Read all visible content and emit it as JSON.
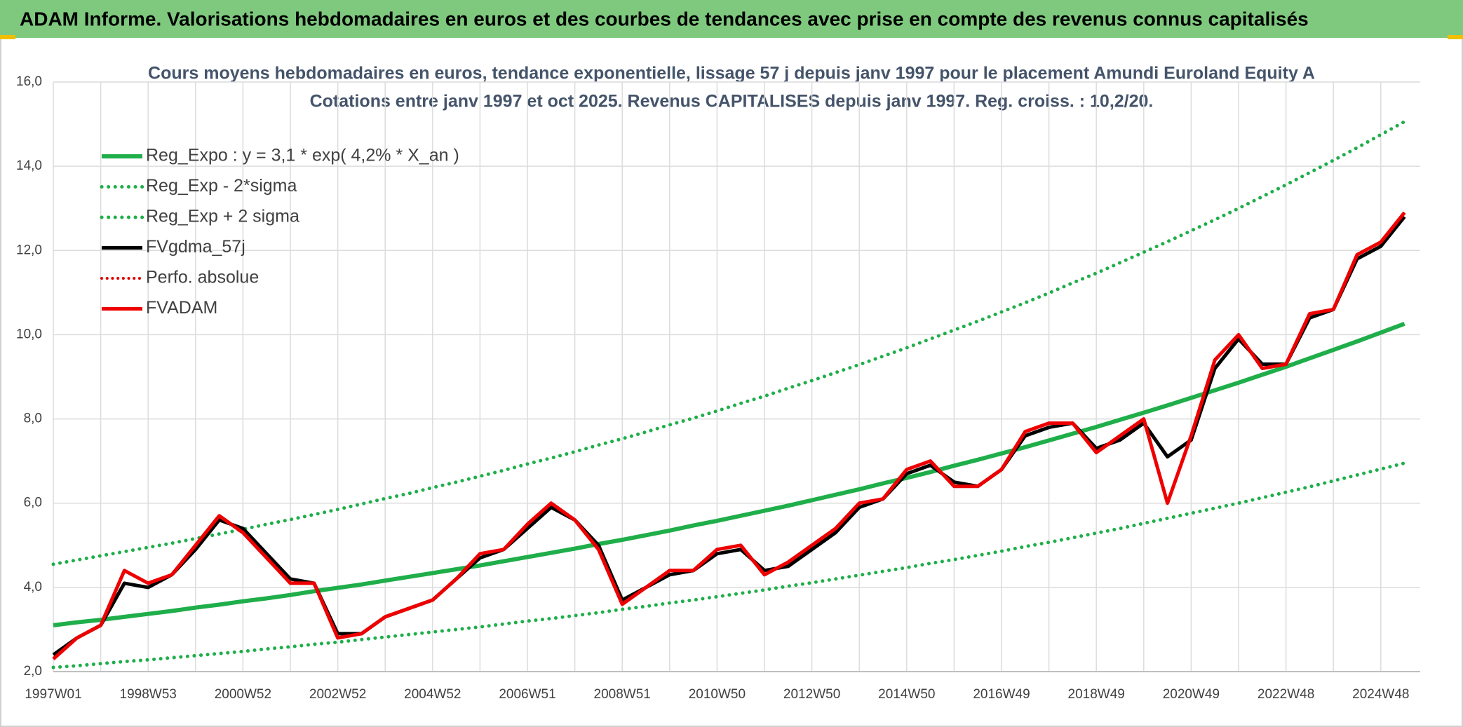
{
  "header": {
    "title": "ADAM Informe. Valorisations hebdomadaires en euros et des courbes de tendances avec prise en compte des revenus connus capitalisés"
  },
  "chart_data": {
    "type": "line",
    "title": "Cours moyens hebdomadaires en euros, tendance exponentielle, lissage 57 j depuis janv 1997 pour le placement Amundi Euroland Equity A",
    "subtitle": "Cotations entre janv 1997 et oct 2025. Revenus CAPITALISES depuis janv 1997. Reg. croiss. : 10,2/20.",
    "categories": [
      "1997W01",
      null,
      null,
      null,
      "1998W53",
      null,
      null,
      null,
      "2000W52",
      null,
      null,
      null,
      "2002W52",
      null,
      null,
      null,
      "2004W52",
      null,
      null,
      null,
      "2006W51",
      null,
      null,
      null,
      "2008W51",
      null,
      null,
      null,
      "2010W50",
      null,
      null,
      null,
      "2012W50",
      null,
      null,
      null,
      "2014W50",
      null,
      null,
      null,
      "2016W49",
      null,
      null,
      null,
      "2018W49",
      null,
      null,
      null,
      "2020W49",
      null,
      null,
      null,
      "2022W48",
      null,
      null,
      null,
      "2024W48",
      null
    ],
    "ylim": [
      2,
      16
    ],
    "yticks": [
      {
        "value": 2,
        "label": "2,0"
      },
      {
        "value": 4,
        "label": "4,0"
      },
      {
        "value": 6,
        "label": "6,0"
      },
      {
        "value": 8,
        "label": "8,0"
      },
      {
        "value": 10,
        "label": "10,0"
      },
      {
        "value": 12,
        "label": "12,0"
      },
      {
        "value": 14,
        "label": "14,0"
      },
      {
        "value": 16,
        "label": "16,0"
      }
    ],
    "grid": true,
    "legend": "top-left",
    "series": [
      {
        "name": "Reg_Expo : y = 3,1 * exp( 4,2% *  X_an )",
        "color": "#1fae4a",
        "style": "solid",
        "width": 6,
        "values": [
          3.1,
          3.17,
          3.23,
          3.3,
          3.37,
          3.44,
          3.52,
          3.59,
          3.67,
          3.74,
          3.82,
          3.91,
          3.99,
          4.07,
          4.16,
          4.25,
          4.34,
          4.43,
          4.52,
          4.62,
          4.72,
          4.82,
          4.92,
          5.03,
          5.13,
          5.24,
          5.35,
          5.47,
          5.58,
          5.7,
          5.82,
          5.94,
          6.07,
          6.2,
          6.33,
          6.47,
          6.6,
          6.74,
          6.89,
          7.03,
          7.18,
          7.33,
          7.49,
          7.65,
          7.81,
          7.98,
          8.15,
          8.32,
          8.5,
          8.68,
          8.86,
          9.05,
          9.24,
          9.44,
          9.64,
          9.84,
          10.05,
          10.26
        ]
      },
      {
        "name": "Reg_Exp - 2*sigma",
        "color": "#1fae4a",
        "style": "dotted",
        "width": 5,
        "values": [
          2.1,
          2.14,
          2.19,
          2.24,
          2.28,
          2.33,
          2.38,
          2.43,
          2.48,
          2.54,
          2.59,
          2.65,
          2.7,
          2.76,
          2.82,
          2.88,
          2.94,
          3.0,
          3.06,
          3.13,
          3.2,
          3.26,
          3.33,
          3.4,
          3.48,
          3.55,
          3.63,
          3.7,
          3.78,
          3.86,
          3.94,
          4.03,
          4.11,
          4.2,
          4.29,
          4.38,
          4.47,
          4.57,
          4.66,
          4.76,
          4.86,
          4.97,
          5.07,
          5.18,
          5.29,
          5.4,
          5.52,
          5.64,
          5.76,
          5.88,
          6.0,
          6.13,
          6.26,
          6.39,
          6.53,
          6.67,
          6.81,
          6.95
        ]
      },
      {
        "name": "Reg_Exp + 2 sigma",
        "color": "#1fae4a",
        "style": "dotted",
        "width": 5,
        "values": [
          4.55,
          4.65,
          4.75,
          4.85,
          4.95,
          5.05,
          5.16,
          5.27,
          5.38,
          5.5,
          5.61,
          5.73,
          5.85,
          5.98,
          6.11,
          6.23,
          6.37,
          6.5,
          6.64,
          6.78,
          6.93,
          7.07,
          7.22,
          7.38,
          7.53,
          7.69,
          7.86,
          8.02,
          8.19,
          8.37,
          8.54,
          8.73,
          8.91,
          9.1,
          9.29,
          9.49,
          9.69,
          9.9,
          10.11,
          10.32,
          10.54,
          10.76,
          10.99,
          11.23,
          11.46,
          11.71,
          11.96,
          12.21,
          12.47,
          12.73,
          13.0,
          13.28,
          13.56,
          13.85,
          14.14,
          14.44,
          14.75,
          15.06
        ]
      },
      {
        "name": "FVgdma_57j",
        "color": "#000000",
        "style": "solid",
        "width": 5,
        "values": [
          2.4,
          2.8,
          3.1,
          4.1,
          4.0,
          4.3,
          4.9,
          5.6,
          5.4,
          4.8,
          4.2,
          4.1,
          2.9,
          2.9,
          3.3,
          3.5,
          3.7,
          4.2,
          4.7,
          4.9,
          5.4,
          5.9,
          5.6,
          5.0,
          3.7,
          4.0,
          4.3,
          4.4,
          4.8,
          4.9,
          4.4,
          4.5,
          4.9,
          5.3,
          5.9,
          6.1,
          6.7,
          6.9,
          6.5,
          6.4,
          6.8,
          7.6,
          7.8,
          7.9,
          7.3,
          7.5,
          7.9,
          7.1,
          7.5,
          9.2,
          9.9,
          9.3,
          9.3,
          10.4,
          10.6,
          11.8,
          12.1,
          12.8
        ]
      },
      {
        "name": "Perfo. absolue",
        "color": "#e00000",
        "style": "dotted",
        "width": 4,
        "values": [
          null,
          null,
          null,
          null,
          null,
          null,
          null,
          null,
          null,
          null,
          null,
          null,
          null,
          null,
          null,
          null,
          null,
          null,
          null,
          null,
          null,
          null,
          null,
          null,
          null,
          null,
          null,
          null,
          null,
          null,
          null,
          null,
          null,
          null,
          null,
          null,
          null,
          null,
          null,
          null,
          null,
          null,
          null,
          null,
          null,
          null,
          null,
          null,
          null,
          null,
          null,
          null,
          null,
          null,
          null,
          null,
          null,
          null
        ]
      },
      {
        "name": "FVADAM",
        "color": "#ee0000",
        "style": "solid",
        "width": 5,
        "values": [
          2.3,
          2.8,
          3.1,
          4.4,
          4.1,
          4.3,
          5.0,
          5.7,
          5.3,
          4.7,
          4.1,
          4.1,
          2.8,
          2.9,
          3.3,
          3.5,
          3.7,
          4.2,
          4.8,
          4.9,
          5.5,
          6.0,
          5.6,
          4.9,
          3.6,
          4.0,
          4.4,
          4.4,
          4.9,
          5.0,
          4.3,
          4.6,
          5.0,
          5.4,
          6.0,
          6.1,
          6.8,
          7.0,
          6.4,
          6.4,
          6.8,
          7.7,
          7.9,
          7.9,
          7.2,
          7.6,
          8.0,
          6.0,
          7.6,
          9.4,
          10.0,
          9.2,
          9.3,
          10.5,
          10.6,
          11.9,
          12.2,
          12.9
        ]
      }
    ]
  }
}
